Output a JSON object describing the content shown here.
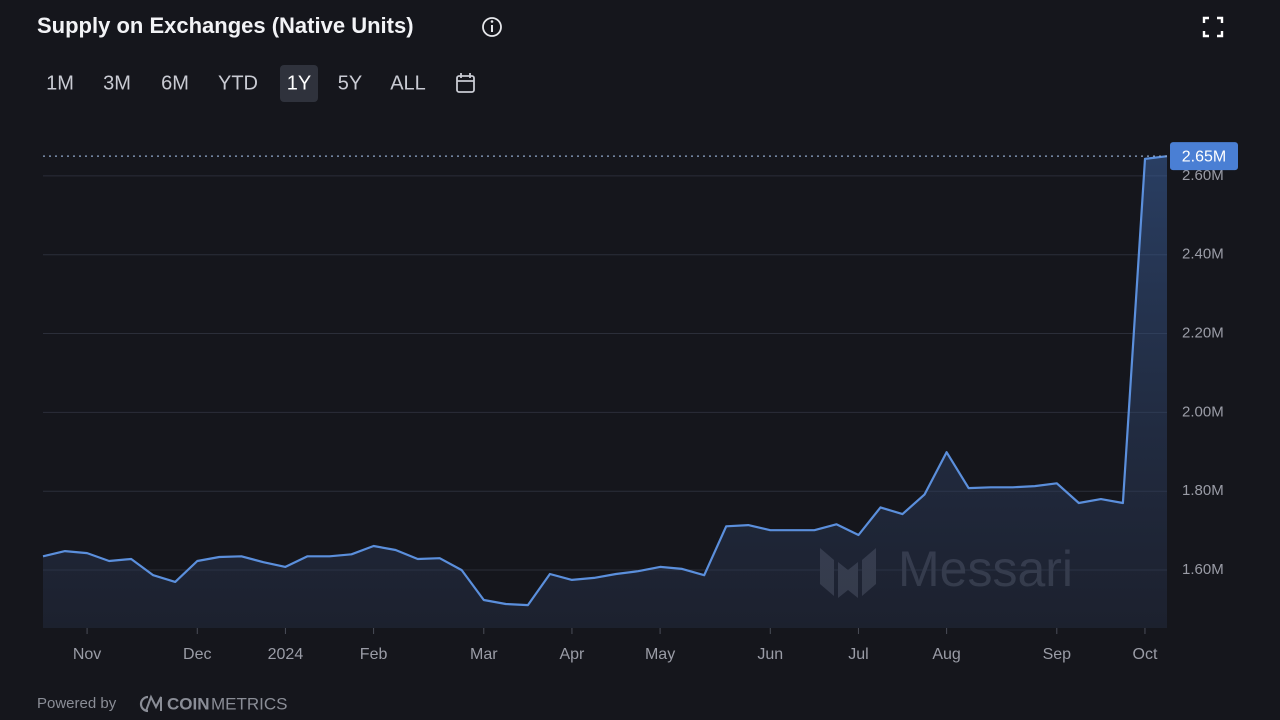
{
  "header": {
    "title": "Supply on Exchanges (Native Units)",
    "range_buttons": [
      "1M",
      "3M",
      "6M",
      "YTD",
      "1Y",
      "5Y",
      "ALL"
    ],
    "active_range": "1Y"
  },
  "chart_data": {
    "type": "line",
    "categories": [
      null,
      null,
      "Nov",
      null,
      null,
      null,
      null,
      "Dec",
      null,
      null,
      null,
      "2024",
      null,
      null,
      null,
      "Feb",
      null,
      null,
      null,
      null,
      "Mar",
      null,
      null,
      null,
      "Apr",
      null,
      null,
      null,
      "May",
      null,
      null,
      null,
      null,
      "Jun",
      null,
      null,
      null,
      "Jul",
      null,
      null,
      null,
      "Aug",
      null,
      null,
      null,
      null,
      "Sep",
      null,
      null,
      null,
      "Oct",
      null
    ],
    "series": [
      {
        "name": "Supply on Exchanges",
        "color": "#5b8fdc",
        "values": [
          1635000,
          1648000,
          1643000,
          1623000,
          1628000,
          1587000,
          1570000,
          1623000,
          1633000,
          1635000,
          1620000,
          1608000,
          1635000,
          1635000,
          1640000,
          1661000,
          1651000,
          1628000,
          1630000,
          1600000,
          1524000,
          1514000,
          1511000,
          1590000,
          1575000,
          1580000,
          1590000,
          1597000,
          1608000,
          1603000,
          1587000,
          1711000,
          1714000,
          1701000,
          1701000,
          1701000,
          1716000,
          1689000,
          1759000,
          1742000,
          1792000,
          1899000,
          1808000,
          1810000,
          1810000,
          1813000,
          1820000,
          1770000,
          1780000,
          1770000,
          2643000,
          2650000
        ],
        "value_labels": [
          null,
          null,
          null,
          null,
          null,
          null,
          null,
          null,
          null,
          null,
          null,
          null,
          null,
          null,
          null,
          null,
          null,
          null,
          null,
          null,
          null,
          null,
          null,
          null,
          null,
          null,
          null,
          null,
          null,
          null,
          null,
          null,
          null,
          null,
          null,
          null,
          null,
          null,
          null,
          null,
          null,
          null,
          null,
          null,
          null,
          null,
          null,
          null,
          null,
          null,
          null,
          "2.65M"
        ]
      }
    ],
    "ylim": [
      1453000,
      2691000
    ],
    "yticks": [
      {
        "value": 1600000,
        "label": "1.60M"
      },
      {
        "value": 1800000,
        "label": "1.80M"
      },
      {
        "value": 2000000,
        "label": "2.00M"
      },
      {
        "value": 2200000,
        "label": "2.20M"
      },
      {
        "value": 2400000,
        "label": "2.40M"
      },
      {
        "value": 2600000,
        "label": "2.60M"
      }
    ],
    "grid": true,
    "watermark": "Messari"
  },
  "footer": {
    "powered_by": "Powered by",
    "brand_bold": "COIN",
    "brand_light": "METRICS"
  }
}
